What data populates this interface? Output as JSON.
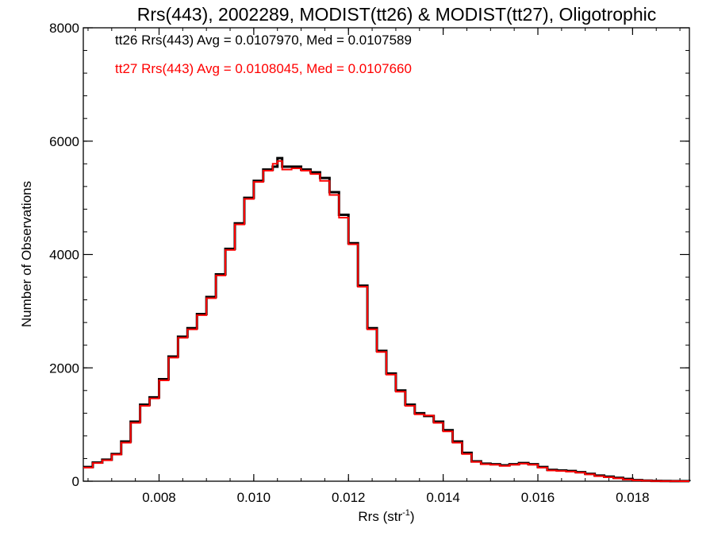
{
  "chart_data": {
    "type": "line",
    "step": true,
    "title": "Rrs(443), 2002289, MODIST(tt26) & MODIST(tt27), Oligotrophic",
    "xlabel": "Rrs (str",
    "xlabel_sup": "-1",
    "xlabel_close": ")",
    "ylabel": "Number of Observations",
    "xlim": [
      0.0064,
      0.0192
    ],
    "ylim": [
      0,
      8000
    ],
    "xticks": [
      0.008,
      0.01,
      0.012,
      0.014,
      0.016,
      0.018
    ],
    "xtick_labels": [
      "0.008",
      "0.010",
      "0.012",
      "0.014",
      "0.016",
      "0.018"
    ],
    "yticks": [
      0,
      2000,
      4000,
      6000,
      8000
    ],
    "ytick_labels": [
      "0",
      "2000",
      "4000",
      "6000",
      "8000"
    ],
    "grid": false,
    "legend_position": "top-left",
    "annotations": [
      {
        "text": "tt26 Rrs(443) Avg = 0.0107970, Med = 0.0107589",
        "color": "#000000"
      },
      {
        "text": "tt27 Rrs(443) Avg = 0.0108045, Med = 0.0107660",
        "color": "#ff0000"
      }
    ],
    "series": [
      {
        "color": "#000000",
        "x": [
          0.0064,
          0.0066,
          0.0068,
          0.007,
          0.0072,
          0.0074,
          0.0076,
          0.0078,
          0.008,
          0.0082,
          0.0084,
          0.0086,
          0.0088,
          0.009,
          0.0092,
          0.0094,
          0.0096,
          0.0098,
          0.01,
          0.0102,
          0.0104,
          0.0105,
          0.0106,
          0.0108,
          0.011,
          0.0112,
          0.0114,
          0.0116,
          0.0118,
          0.012,
          0.0122,
          0.0124,
          0.0126,
          0.0128,
          0.013,
          0.0132,
          0.0134,
          0.0136,
          0.0138,
          0.014,
          0.0142,
          0.0144,
          0.0146,
          0.0148,
          0.015,
          0.0152,
          0.0154,
          0.0156,
          0.0158,
          0.016,
          0.0162,
          0.0164,
          0.0166,
          0.0168,
          0.017,
          0.0172,
          0.0174,
          0.0176,
          0.0178,
          0.018,
          0.0182,
          0.0184,
          0.0186,
          0.0188,
          0.019,
          0.0192
        ],
        "y": [
          250,
          330,
          380,
          480,
          700,
          1050,
          1350,
          1480,
          1800,
          2200,
          2550,
          2700,
          2950,
          3250,
          3650,
          4100,
          4550,
          5000,
          5300,
          5500,
          5550,
          5700,
          5550,
          5550,
          5500,
          5450,
          5350,
          5100,
          4700,
          4200,
          3450,
          2700,
          2300,
          1900,
          1600,
          1350,
          1200,
          1150,
          1050,
          900,
          700,
          500,
          350,
          310,
          300,
          280,
          300,
          320,
          300,
          250,
          200,
          190,
          180,
          160,
          130,
          100,
          80,
          60,
          40,
          20,
          10,
          5,
          3,
          2,
          1,
          0
        ]
      },
      {
        "color": "#ff0000",
        "x": [
          0.0064,
          0.0066,
          0.0068,
          0.007,
          0.0072,
          0.0074,
          0.0076,
          0.0078,
          0.008,
          0.0082,
          0.0084,
          0.0086,
          0.0088,
          0.009,
          0.0092,
          0.0094,
          0.0096,
          0.0098,
          0.01,
          0.0102,
          0.0104,
          0.0105,
          0.0106,
          0.0108,
          0.011,
          0.0112,
          0.0114,
          0.0116,
          0.0118,
          0.012,
          0.0122,
          0.0124,
          0.0126,
          0.0128,
          0.013,
          0.0132,
          0.0134,
          0.0136,
          0.0138,
          0.014,
          0.0142,
          0.0144,
          0.0146,
          0.0148,
          0.015,
          0.0152,
          0.0154,
          0.0156,
          0.0158,
          0.016,
          0.0162,
          0.0164,
          0.0166,
          0.0168,
          0.017,
          0.0172,
          0.0174,
          0.0176,
          0.0178,
          0.018,
          0.0182,
          0.0184,
          0.0186,
          0.0188,
          0.019,
          0.0192
        ],
        "y": [
          240,
          320,
          370,
          470,
          680,
          1030,
          1330,
          1460,
          1780,
          2180,
          2530,
          2680,
          2930,
          3230,
          3630,
          4080,
          4530,
          4980,
          5280,
          5480,
          5600,
          5650,
          5500,
          5520,
          5480,
          5420,
          5300,
          5050,
          4650,
          4180,
          3430,
          2680,
          2280,
          1880,
          1580,
          1330,
          1180,
          1160,
          1030,
          880,
          680,
          480,
          340,
          300,
          290,
          270,
          290,
          310,
          290,
          240,
          190,
          180,
          170,
          150,
          120,
          90,
          70,
          50,
          30,
          15,
          8,
          4,
          2,
          1,
          0,
          0
        ]
      }
    ]
  }
}
